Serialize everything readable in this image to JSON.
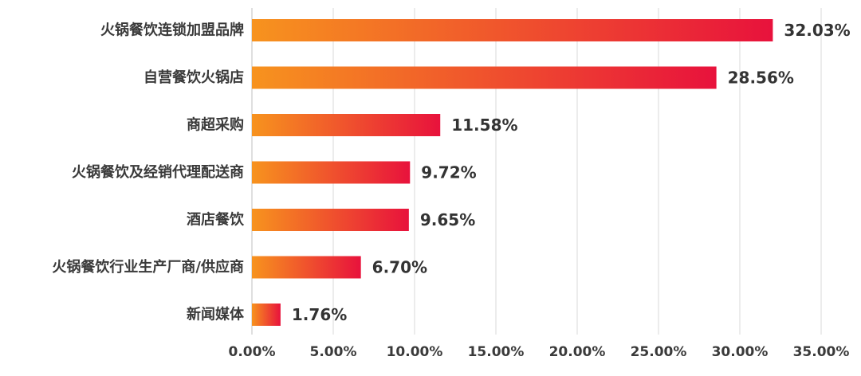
{
  "chart_data": {
    "type": "bar",
    "orientation": "horizontal",
    "categories": [
      "火锅餐饮连锁加盟品牌",
      "自营餐饮火锅店",
      "商超采购",
      "火锅餐饮及经销代理配送商",
      "酒店餐饮",
      "火锅餐饮行业生产厂商/供应商",
      "新闻媒体"
    ],
    "values": [
      32.03,
      28.56,
      11.58,
      9.72,
      9.65,
      6.7,
      1.76
    ],
    "value_labels": [
      "32.03%",
      "28.56%",
      "11.58%",
      "9.72%",
      "9.65%",
      "6.70%",
      "1.76%"
    ],
    "xlim": [
      0,
      35
    ],
    "x_ticks": [
      0,
      5,
      10,
      15,
      20,
      25,
      30,
      35
    ],
    "x_tick_labels": [
      "0.00%",
      "5.00%",
      "10.00%",
      "15.00%",
      "20.00%",
      "25.00%",
      "30.00%",
      "35.00%"
    ],
    "grid": "vertical",
    "legend": "none",
    "bar_gradient": [
      "#f7931e",
      "#e8123c"
    ],
    "title": "",
    "xlabel": "",
    "ylabel": ""
  }
}
